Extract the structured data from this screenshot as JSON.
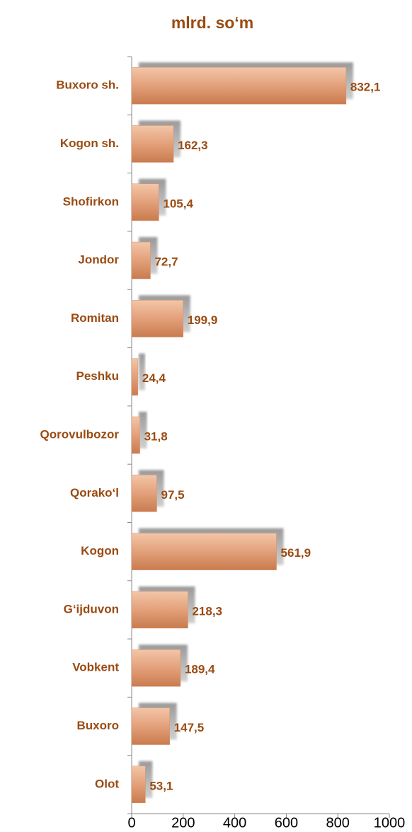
{
  "chart_data": {
    "type": "bar",
    "orientation": "horizontal",
    "title": "mlrd. so‘m",
    "categories": [
      "Buxoro sh.",
      "Kogon sh.",
      "Shofirkon",
      "Jondor",
      "Romitan",
      "Peshku",
      "Qorovulbozor",
      "Qorako‘l",
      "Kogon",
      "G‘ijduvon",
      "Vobkent",
      "Buxoro",
      "Olot"
    ],
    "values": [
      832.1,
      162.3,
      105.4,
      72.7,
      199.9,
      24.4,
      31.8,
      97.5,
      561.9,
      218.3,
      189.4,
      147.5,
      53.1
    ],
    "value_labels": [
      "832,1",
      "162,3",
      "105,4",
      "72,7",
      "199,9",
      "24,4",
      "31,8",
      "97,5",
      "561,9",
      "218,3",
      "189,4",
      "147,5",
      "53,1"
    ],
    "color": "#d9906a",
    "xlim": [
      0,
      1000
    ],
    "xticks": [
      0,
      200,
      400,
      600,
      800,
      1000
    ]
  }
}
